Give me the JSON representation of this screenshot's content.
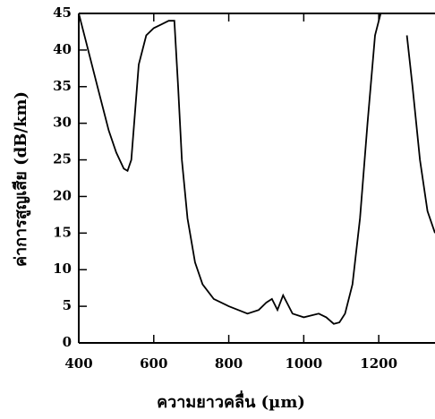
{
  "chart_data": {
    "type": "line",
    "x_label": "ความยาวคลื่น (µm)",
    "y_label": "ค่าการสูญเสีย (dB/km)",
    "x": [
      400,
      420,
      450,
      480,
      500,
      520,
      530,
      540,
      560,
      580,
      600,
      620,
      640,
      655,
      665,
      675,
      690,
      710,
      730,
      760,
      800,
      850,
      880,
      900,
      915,
      930,
      945,
      955,
      970,
      1000,
      1040,
      1060,
      1080,
      1095,
      1110,
      1130,
      1150,
      1170,
      1190,
      1205,
      1230,
      1275,
      1290,
      1310,
      1330,
      1350
    ],
    "series": [
      {
        "color": "#000000",
        "values": [
          45,
          41,
          35,
          29,
          26,
          23.8,
          23.5,
          25,
          38,
          42,
          43,
          43.5,
          44,
          44,
          35,
          25,
          17,
          11,
          8,
          6,
          5,
          4,
          4.5,
          5.5,
          6,
          4.5,
          6.5,
          5.5,
          4,
          3.5,
          4,
          3.5,
          2.6,
          2.8,
          4,
          8,
          17,
          30,
          42,
          45,
          null,
          42,
          35,
          25,
          18,
          15
        ]
      }
    ],
    "xlim": [
      400,
      1350
    ],
    "ylim": [
      0,
      45
    ],
    "xticks": [
      400,
      600,
      800,
      1000,
      1200
    ],
    "yticks": [
      0,
      5,
      10,
      15,
      20,
      25,
      30,
      35,
      40,
      45
    ]
  }
}
